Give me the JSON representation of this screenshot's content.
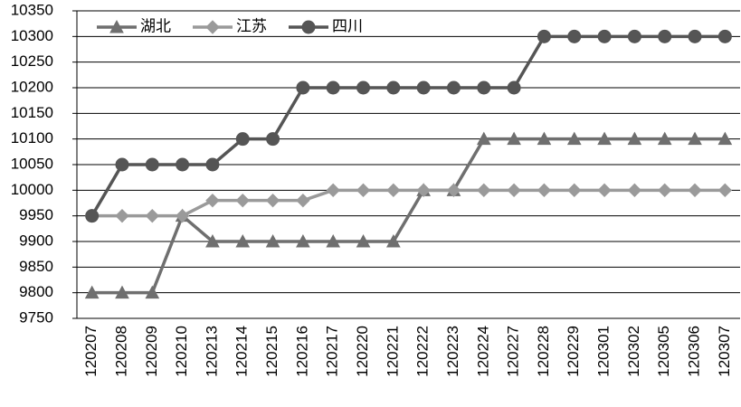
{
  "chart_data": {
    "type": "line",
    "categories": [
      "120207",
      "120208",
      "120209",
      "120210",
      "120213",
      "120214",
      "120215",
      "120216",
      "120217",
      "120220",
      "120221",
      "120222",
      "120223",
      "120224",
      "120227",
      "120228",
      "120229",
      "120301",
      "120302",
      "120305",
      "120306",
      "120307"
    ],
    "series": [
      {
        "name": "湖北",
        "color": "#6f6f6f",
        "marker": "triangle",
        "values": [
          9800,
          9800,
          9800,
          9950,
          9900,
          9900,
          9900,
          9900,
          9900,
          9900,
          9900,
          10000,
          10000,
          10100,
          10100,
          10100,
          10100,
          10100,
          10100,
          10100,
          10100,
          10100
        ]
      },
      {
        "name": "江苏",
        "color": "#9a9a9a",
        "marker": "diamond",
        "values": [
          9950,
          9950,
          9950,
          9950,
          9980,
          9980,
          9980,
          9980,
          10000,
          10000,
          10000,
          10000,
          10000,
          10000,
          10000,
          10000,
          10000,
          10000,
          10000,
          10000,
          10000,
          10000
        ]
      },
      {
        "name": "四川",
        "color": "#555555",
        "marker": "circle",
        "values": [
          9950,
          10050,
          10050,
          10050,
          10050,
          10100,
          10100,
          10200,
          10200,
          10200,
          10200,
          10200,
          10200,
          10200,
          10200,
          10300,
          10300,
          10300,
          10300,
          10300,
          10300,
          10300
        ]
      }
    ],
    "ylim": [
      9750,
      10350
    ],
    "yticks": [
      9750,
      9800,
      9850,
      9900,
      9950,
      10000,
      10050,
      10100,
      10150,
      10200,
      10250,
      10300,
      10350
    ],
    "grid": true,
    "legend": "top-left"
  }
}
